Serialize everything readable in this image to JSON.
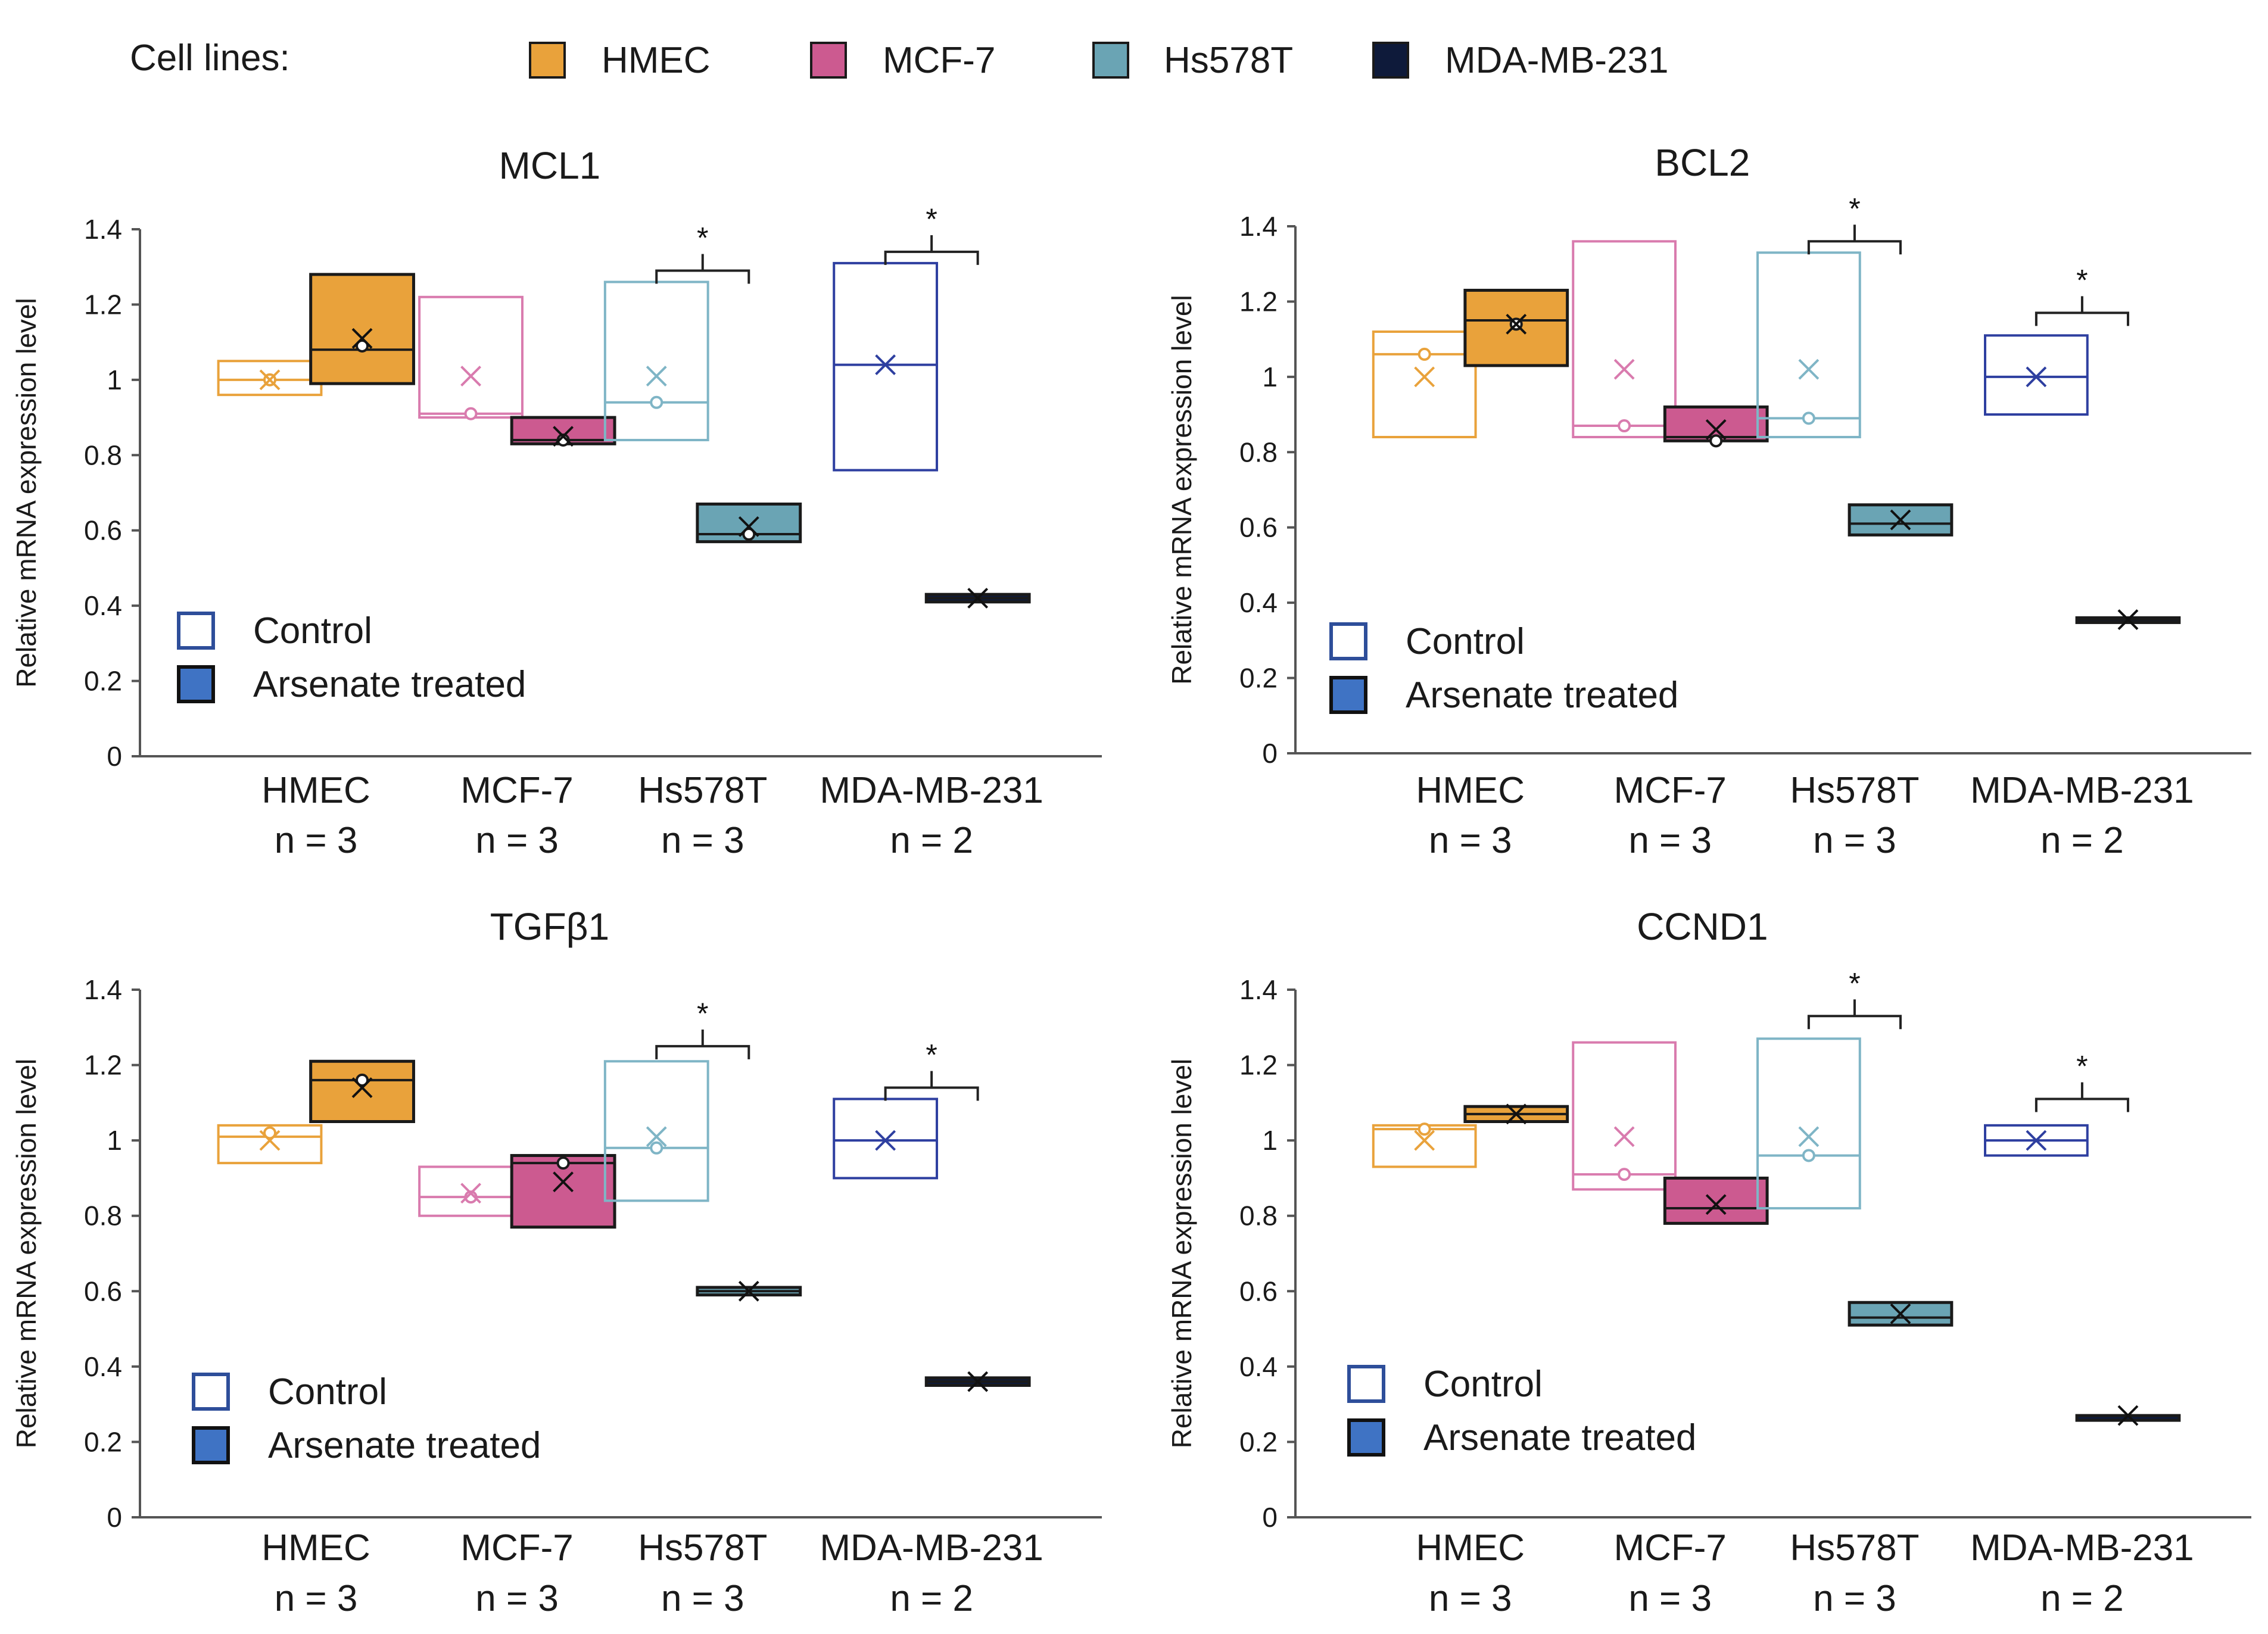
{
  "legend": {
    "title": "Cell lines:",
    "items": [
      {
        "label": "HMEC",
        "color": "#E9A23B"
      },
      {
        "label": "MCF-7",
        "color": "#CC5A90"
      },
      {
        "label": "Hs578T",
        "color": "#6AA4B4"
      },
      {
        "label": "MDA-MB-231",
        "color": "#0E1A3A"
      }
    ]
  },
  "colors": {
    "control_stroke": {
      "HMEC": "#E9A23B",
      "MCF-7": "#D97BAE",
      "Hs578T": "#7FB5C6",
      "MDA-MB-231": "#2E3FA0"
    },
    "treated_fill": {
      "HMEC": "#E9A23B",
      "MCF-7": "#CC5A90",
      "Hs578T": "#6AA4B4",
      "MDA-MB-231": "#0E1A3A"
    },
    "legend_control_stroke": "#2E4E9A",
    "legend_treated_fill": "#3F73C4"
  },
  "chart_data": [
    {
      "type": "box",
      "title": "MCL1",
      "ylabel": "Relative mRNA expression level",
      "ylim": [
        0,
        1.4
      ],
      "yticks": [
        "0",
        "0.2",
        "0.4",
        "0.6",
        "0.8",
        "1",
        "1.2",
        "1.4"
      ],
      "categories": [
        {
          "name": "HMEC",
          "n": "n = 3"
        },
        {
          "name": "MCF-7",
          "n": "n = 3"
        },
        {
          "name": "Hs578T",
          "n": "n = 3"
        },
        {
          "name": "MDA-MB-231",
          "n": "n = 2"
        }
      ],
      "legend": {
        "control": "Control",
        "treated": "Arsenate treated"
      },
      "boxes": [
        {
          "cell": "HMEC",
          "group": "control",
          "q1": 0.96,
          "median": 1.0,
          "q3": 1.05,
          "mean": 1.0,
          "dots": [
            1.0
          ]
        },
        {
          "cell": "HMEC",
          "group": "treated",
          "q1": 0.99,
          "median": 1.08,
          "q3": 1.28,
          "mean": 1.11,
          "dots": [
            1.09
          ]
        },
        {
          "cell": "MCF-7",
          "group": "control",
          "q1": 0.9,
          "median": 0.91,
          "q3": 1.22,
          "mean": 1.01,
          "dots": [
            0.91
          ]
        },
        {
          "cell": "MCF-7",
          "group": "treated",
          "q1": 0.83,
          "median": 0.84,
          "q3": 0.9,
          "mean": 0.85,
          "dots": [
            0.84
          ]
        },
        {
          "cell": "Hs578T",
          "group": "control",
          "q1": 0.84,
          "median": 0.94,
          "q3": 1.26,
          "mean": 1.01,
          "dots": [
            0.94
          ]
        },
        {
          "cell": "Hs578T",
          "group": "treated",
          "q1": 0.57,
          "median": 0.59,
          "q3": 0.67,
          "mean": 0.61,
          "dots": [
            0.59
          ]
        },
        {
          "cell": "MDA-MB-231",
          "group": "control",
          "q1": 0.76,
          "median": 1.04,
          "q3": 1.31,
          "mean": 1.04,
          "dots": []
        },
        {
          "cell": "MDA-MB-231",
          "group": "treated",
          "q1": 0.41,
          "median": 0.42,
          "q3": 0.43,
          "mean": 0.42,
          "dots": []
        }
      ],
      "significance": [
        {
          "cell": "Hs578T",
          "label": "*",
          "y": 1.29
        },
        {
          "cell": "MDA-MB-231",
          "label": "*",
          "y": 1.34
        }
      ]
    },
    {
      "type": "box",
      "title": "BCL2",
      "ylabel": "Relative mRNA expression level",
      "ylim": [
        0,
        1.4
      ],
      "yticks": [
        "0",
        "0.2",
        "0.4",
        "0.6",
        "0.8",
        "1",
        "1.2",
        "1.4"
      ],
      "categories": [
        {
          "name": "HMEC",
          "n": "n = 3"
        },
        {
          "name": "MCF-7",
          "n": "n = 3"
        },
        {
          "name": "Hs578T",
          "n": "n = 3"
        },
        {
          "name": "MDA-MB-231",
          "n": "n = 2"
        }
      ],
      "legend": {
        "control": "Control",
        "treated": "Arsenate treated"
      },
      "boxes": [
        {
          "cell": "HMEC",
          "group": "control",
          "q1": 0.84,
          "median": 1.06,
          "q3": 1.12,
          "mean": 1.0,
          "dots": [
            1.06
          ]
        },
        {
          "cell": "HMEC",
          "group": "treated",
          "q1": 1.03,
          "median": 1.15,
          "q3": 1.23,
          "mean": 1.14,
          "dots": [
            1.14
          ]
        },
        {
          "cell": "MCF-7",
          "group": "control",
          "q1": 0.84,
          "median": 0.87,
          "q3": 1.36,
          "mean": 1.02,
          "dots": [
            0.87
          ]
        },
        {
          "cell": "MCF-7",
          "group": "treated",
          "q1": 0.83,
          "median": 0.84,
          "q3": 0.92,
          "mean": 0.86,
          "dots": [
            0.83
          ]
        },
        {
          "cell": "Hs578T",
          "group": "control",
          "q1": 0.84,
          "median": 0.89,
          "q3": 1.33,
          "mean": 1.02,
          "dots": [
            0.89
          ]
        },
        {
          "cell": "Hs578T",
          "group": "treated",
          "q1": 0.58,
          "median": 0.61,
          "q3": 0.66,
          "mean": 0.62,
          "dots": []
        },
        {
          "cell": "MDA-MB-231",
          "group": "control",
          "q1": 0.9,
          "median": 1.0,
          "q3": 1.11,
          "mean": 1.0,
          "dots": []
        },
        {
          "cell": "MDA-MB-231",
          "group": "treated",
          "q1": 0.35,
          "median": 0.355,
          "q3": 0.36,
          "mean": 0.355,
          "dots": []
        }
      ],
      "significance": [
        {
          "cell": "Hs578T",
          "label": "*",
          "y": 1.36
        },
        {
          "cell": "MDA-MB-231",
          "label": "*",
          "y": 1.17
        }
      ]
    },
    {
      "type": "box",
      "title": "TGFβ1",
      "ylabel": "Relative mRNA expression level",
      "ylim": [
        0,
        1.4
      ],
      "yticks": [
        "0",
        "0.2",
        "0.4",
        "0.6",
        "0.8",
        "1",
        "1.2",
        "1.4"
      ],
      "categories": [
        {
          "name": "HMEC",
          "n": "n = 3"
        },
        {
          "name": "MCF-7",
          "n": "n = 3"
        },
        {
          "name": "Hs578T",
          "n": "n = 3"
        },
        {
          "name": "MDA-MB-231",
          "n": "n = 2"
        }
      ],
      "legend": {
        "control": "Control",
        "treated": "Arsenate treated"
      },
      "boxes": [
        {
          "cell": "HMEC",
          "group": "control",
          "q1": 0.94,
          "median": 1.01,
          "q3": 1.04,
          "mean": 1.0,
          "dots": [
            1.02
          ]
        },
        {
          "cell": "HMEC",
          "group": "treated",
          "q1": 1.05,
          "median": 1.16,
          "q3": 1.21,
          "mean": 1.14,
          "dots": [
            1.16
          ]
        },
        {
          "cell": "MCF-7",
          "group": "control",
          "q1": 0.8,
          "median": 0.85,
          "q3": 0.93,
          "mean": 0.86,
          "dots": [
            0.85
          ]
        },
        {
          "cell": "MCF-7",
          "group": "treated",
          "q1": 0.77,
          "median": 0.94,
          "q3": 0.96,
          "mean": 0.89,
          "dots": [
            0.94
          ]
        },
        {
          "cell": "Hs578T",
          "group": "control",
          "q1": 0.84,
          "median": 0.98,
          "q3": 1.21,
          "mean": 1.01,
          "dots": [
            0.98
          ]
        },
        {
          "cell": "Hs578T",
          "group": "treated",
          "q1": 0.59,
          "median": 0.6,
          "q3": 0.61,
          "mean": 0.6,
          "dots": []
        },
        {
          "cell": "MDA-MB-231",
          "group": "control",
          "q1": 0.9,
          "median": 1.0,
          "q3": 1.11,
          "mean": 1.0,
          "dots": []
        },
        {
          "cell": "MDA-MB-231",
          "group": "treated",
          "q1": 0.35,
          "median": 0.36,
          "q3": 0.37,
          "mean": 0.36,
          "dots": []
        }
      ],
      "significance": [
        {
          "cell": "Hs578T",
          "label": "*",
          "y": 1.25
        },
        {
          "cell": "MDA-MB-231",
          "label": "*",
          "y": 1.14
        }
      ]
    },
    {
      "type": "box",
      "title": "CCND1",
      "ylabel": "Relative mRNA expression level",
      "ylim": [
        0,
        1.4
      ],
      "yticks": [
        "0",
        "0.2",
        "0.4",
        "0.6",
        "0.8",
        "1",
        "1.2",
        "1.4"
      ],
      "categories": [
        {
          "name": "HMEC",
          "n": "n = 3"
        },
        {
          "name": "MCF-7",
          "n": "n = 3"
        },
        {
          "name": "Hs578T",
          "n": "n = 3"
        },
        {
          "name": "MDA-MB-231",
          "n": "n = 2"
        }
      ],
      "legend": {
        "control": "Control",
        "treated": "Arsenate treated"
      },
      "boxes": [
        {
          "cell": "HMEC",
          "group": "control",
          "q1": 0.93,
          "median": 1.03,
          "q3": 1.04,
          "mean": 1.0,
          "dots": [
            1.03
          ]
        },
        {
          "cell": "HMEC",
          "group": "treated",
          "q1": 1.05,
          "median": 1.07,
          "q3": 1.09,
          "mean": 1.07,
          "dots": []
        },
        {
          "cell": "MCF-7",
          "group": "control",
          "q1": 0.87,
          "median": 0.91,
          "q3": 1.26,
          "mean": 1.01,
          "dots": [
            0.91
          ]
        },
        {
          "cell": "MCF-7",
          "group": "treated",
          "q1": 0.78,
          "median": 0.82,
          "q3": 0.9,
          "mean": 0.83,
          "dots": []
        },
        {
          "cell": "Hs578T",
          "group": "control",
          "q1": 0.82,
          "median": 0.96,
          "q3": 1.27,
          "mean": 1.01,
          "dots": [
            0.96
          ]
        },
        {
          "cell": "Hs578T",
          "group": "treated",
          "q1": 0.51,
          "median": 0.53,
          "q3": 0.57,
          "mean": 0.54,
          "dots": []
        },
        {
          "cell": "MDA-MB-231",
          "group": "control",
          "q1": 0.96,
          "median": 1.0,
          "q3": 1.04,
          "mean": 1.0,
          "dots": []
        },
        {
          "cell": "MDA-MB-231",
          "group": "treated",
          "q1": 0.27,
          "median": 0.27,
          "q3": 0.27,
          "mean": 0.27,
          "dots": []
        }
      ],
      "significance": [
        {
          "cell": "Hs578T",
          "label": "*",
          "y": 1.33
        },
        {
          "cell": "MDA-MB-231",
          "label": "*",
          "y": 1.11
        }
      ]
    }
  ]
}
